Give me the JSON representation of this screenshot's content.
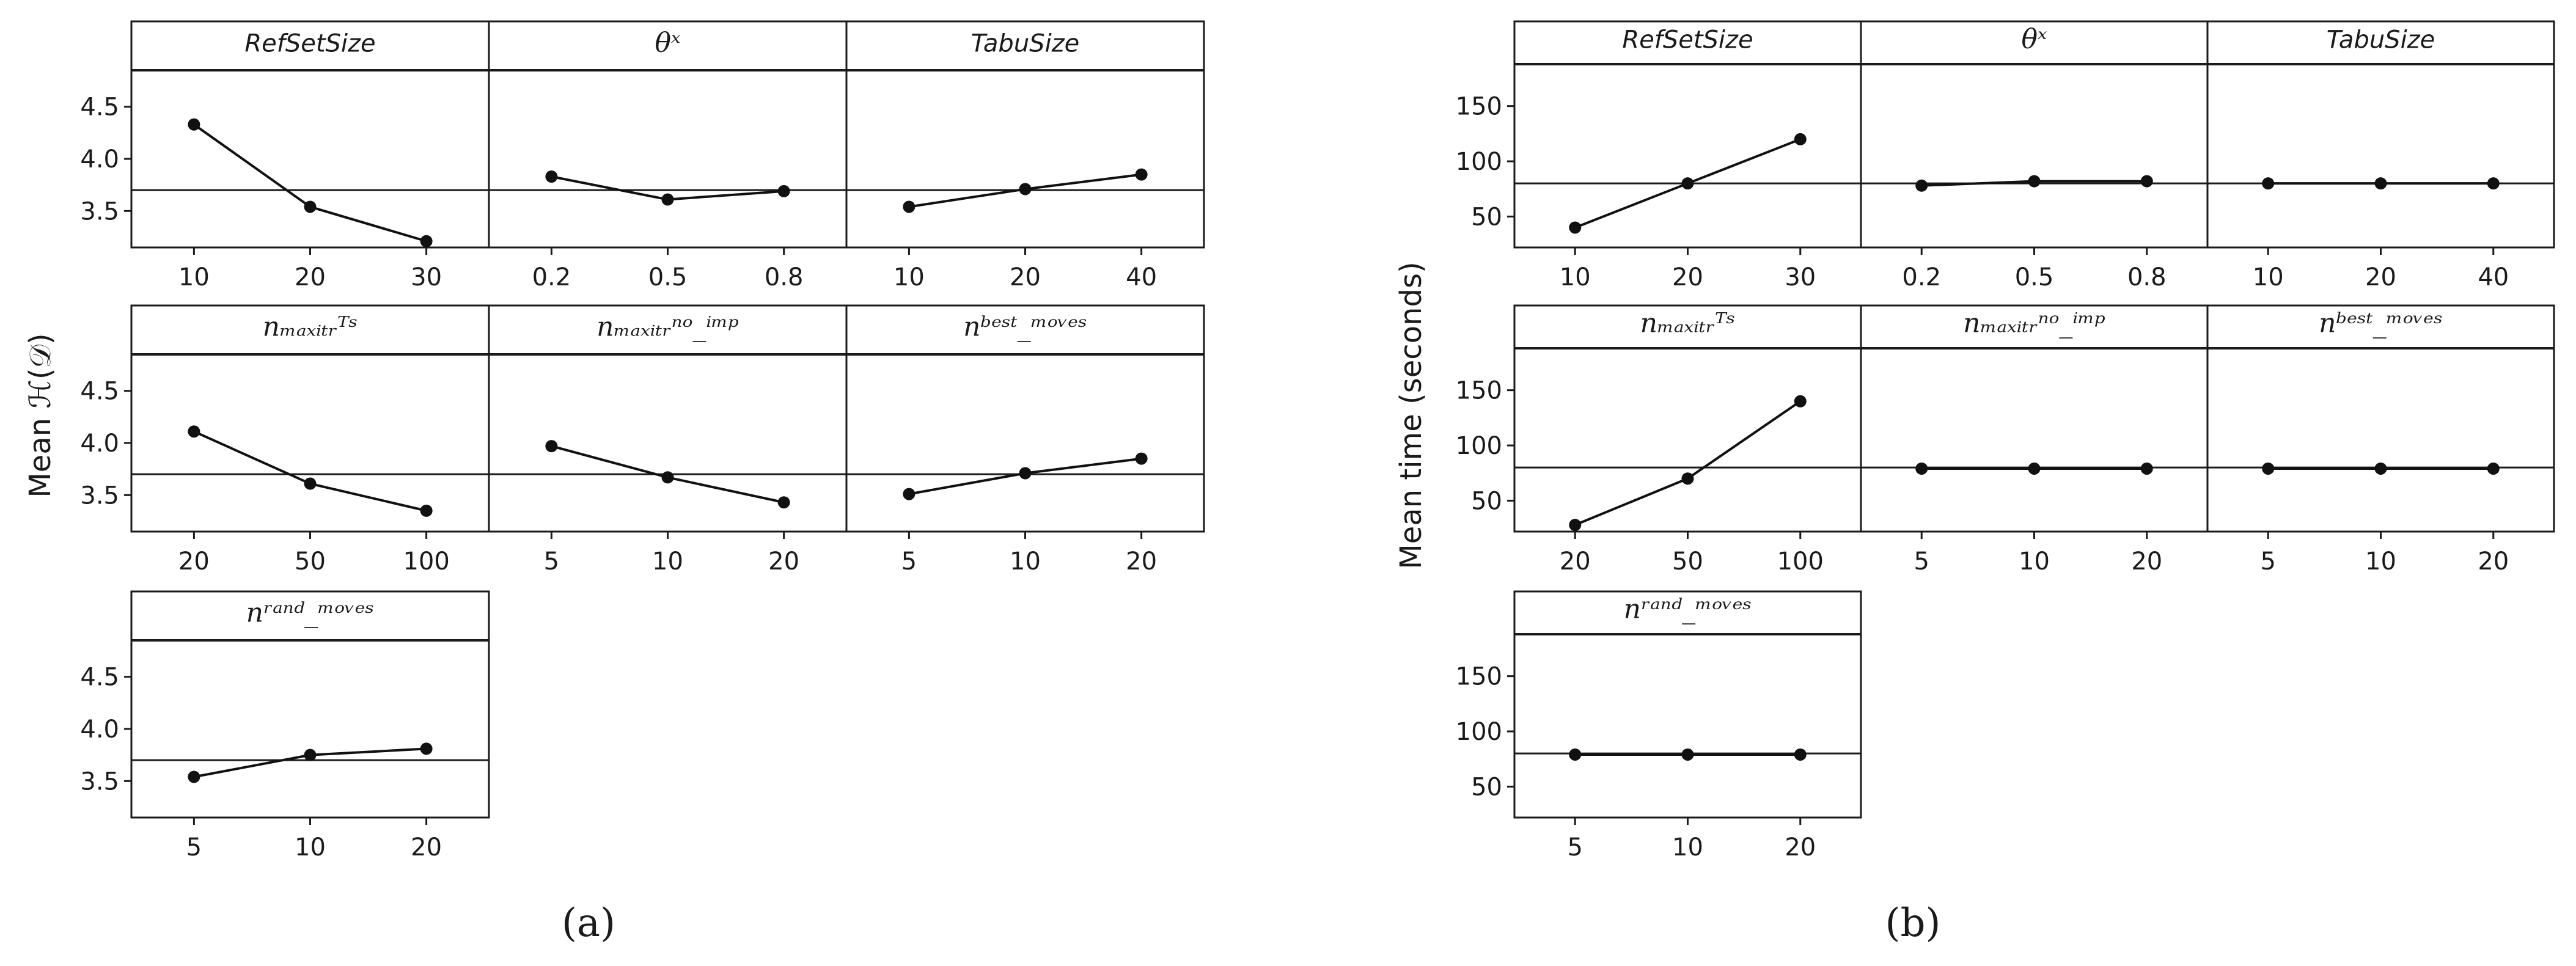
{
  "figure": {
    "label_a": "(a)",
    "label_b": "(b)"
  },
  "chart_data": [
    {
      "type": "line",
      "id": "a",
      "title": "",
      "ylabel": "Mean ℋ(𝒟)",
      "ylim": [
        3.15,
        4.85
      ],
      "yticks": [
        3.5,
        4.0,
        4.5
      ],
      "ytick_labels": [
        "3.5",
        "4.0",
        "4.5"
      ],
      "reference_mean": 3.7,
      "legend": "none",
      "panels": [
        {
          "title": "RefSetSize",
          "title_style": "sans",
          "categories": [
            "10",
            "20",
            "30"
          ],
          "values": [
            4.33,
            3.54,
            3.21
          ]
        },
        {
          "title": "θˣ",
          "title_style": "serif",
          "categories": [
            "0.2",
            "0.5",
            "0.8"
          ],
          "values": [
            3.83,
            3.61,
            3.69
          ]
        },
        {
          "title": "TabuSize",
          "title_style": "sans",
          "categories": [
            "10",
            "20",
            "40"
          ],
          "values": [
            3.54,
            3.71,
            3.85
          ]
        },
        {
          "title": "nₘₐₓᵢₜᵣᵀˢ",
          "title_style": "serif",
          "categories": [
            "20",
            "50",
            "100"
          ],
          "values": [
            4.11,
            3.61,
            3.35
          ]
        },
        {
          "title": "nₘₐₓᵢₜᵣⁿᵒ_ⁱᵐᵖ",
          "title_style": "serif",
          "categories": [
            "5",
            "10",
            "20"
          ],
          "values": [
            3.97,
            3.67,
            3.43
          ]
        },
        {
          "title": "nᵇᵉˢᵗ_ᵐᵒᵛᵉˢ",
          "title_style": "serif",
          "categories": [
            "5",
            "10",
            "20"
          ],
          "values": [
            3.51,
            3.71,
            3.85
          ]
        },
        {
          "title": "nʳᵃⁿᵈ_ᵐᵒᵛᵉˢ",
          "title_style": "serif",
          "categories": [
            "5",
            "10",
            "20"
          ],
          "values": [
            3.54,
            3.75,
            3.81
          ]
        }
      ]
    },
    {
      "type": "line",
      "id": "b",
      "title": "",
      "ylabel": "Mean time (seconds)",
      "ylim": [
        22,
        188
      ],
      "yticks": [
        50,
        100,
        150
      ],
      "ytick_labels": [
        "50",
        "100",
        "150"
      ],
      "reference_mean": 80,
      "legend": "none",
      "panels": [
        {
          "title": "RefSetSize",
          "title_style": "sans",
          "categories": [
            "10",
            "20",
            "30"
          ],
          "values": [
            40,
            80,
            120
          ]
        },
        {
          "title": "θˣ",
          "title_style": "serif",
          "categories": [
            "0.2",
            "0.5",
            "0.8"
          ],
          "values": [
            78,
            82,
            82
          ]
        },
        {
          "title": "TabuSize",
          "title_style": "sans",
          "categories": [
            "10",
            "20",
            "40"
          ],
          "values": [
            80,
            80,
            80
          ]
        },
        {
          "title": "nₘₐₓᵢₜᵣᵀˢ",
          "title_style": "serif",
          "categories": [
            "20",
            "50",
            "100"
          ],
          "values": [
            28,
            70,
            140
          ]
        },
        {
          "title": "nₘₐₓᵢₜᵣⁿᵒ_ⁱᵐᵖ",
          "title_style": "serif",
          "categories": [
            "5",
            "10",
            "20"
          ],
          "values": [
            79,
            79,
            79
          ]
        },
        {
          "title": "nᵇᵉˢᵗ_ᵐᵒᵛᵉˢ",
          "title_style": "serif",
          "categories": [
            "5",
            "10",
            "20"
          ],
          "values": [
            79,
            79,
            79
          ]
        },
        {
          "title": "nʳᵃⁿᵈ_ᵐᵒᵛᵉˢ",
          "title_style": "serif",
          "categories": [
            "5",
            "10",
            "20"
          ],
          "values": [
            79,
            79,
            79
          ]
        }
      ]
    }
  ]
}
